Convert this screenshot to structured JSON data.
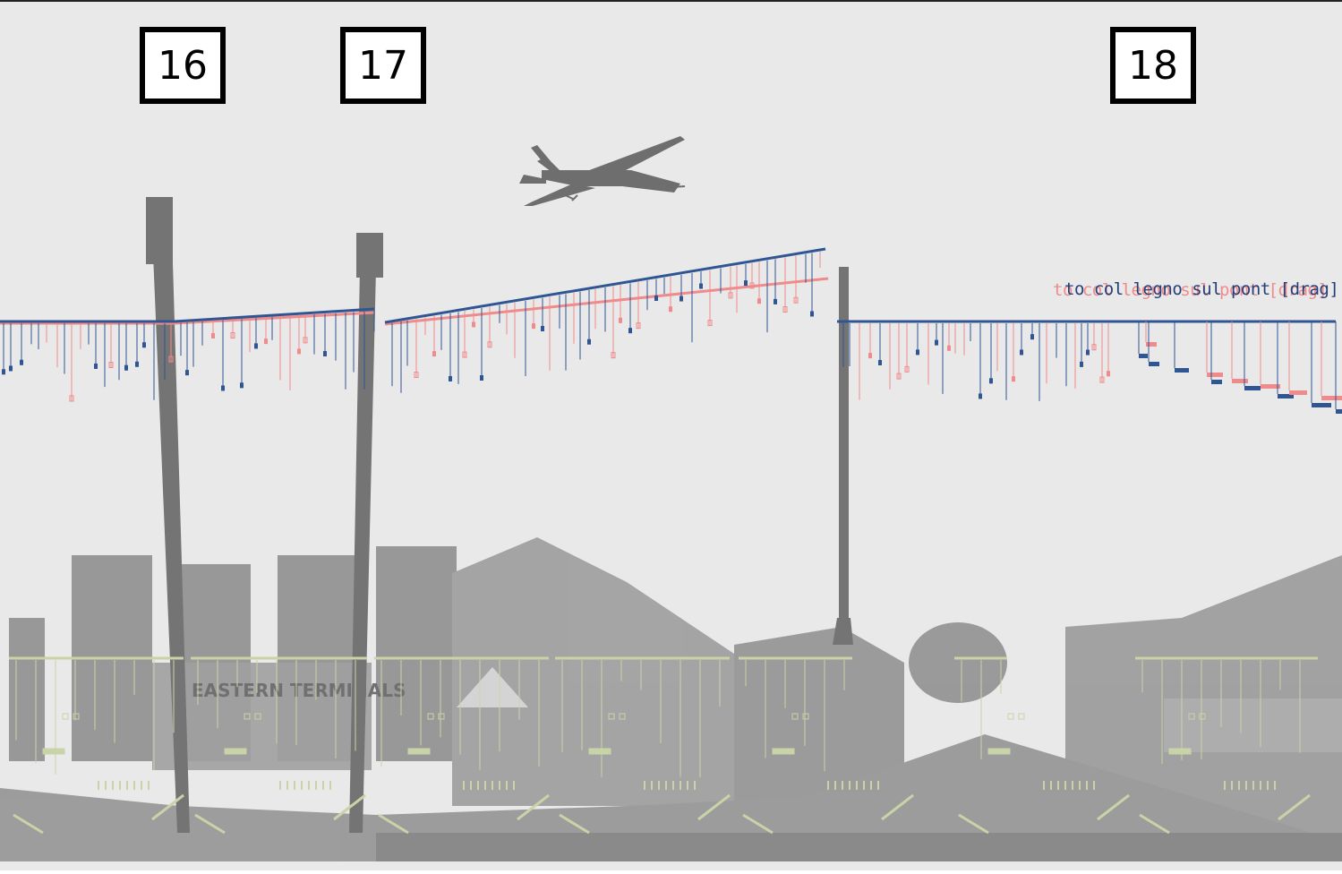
{
  "markers": [
    {
      "label": "16"
    },
    {
      "label": "17"
    },
    {
      "label": "18"
    }
  ],
  "caption": {
    "text": "to col legno sul pont [drag]",
    "echo_text": "to col legno sul pont [drag]"
  },
  "scene": {
    "sign_text": "EASTERN TERMINALS"
  },
  "colors": {
    "background": "#e9e9e9",
    "primary_line": "#2f5592",
    "secondary_line": "#ef8b8b",
    "lower_staff": "#c9d3a8",
    "silhouette": "#7d7d7d",
    "photo_dark": "#8f8f8f"
  }
}
